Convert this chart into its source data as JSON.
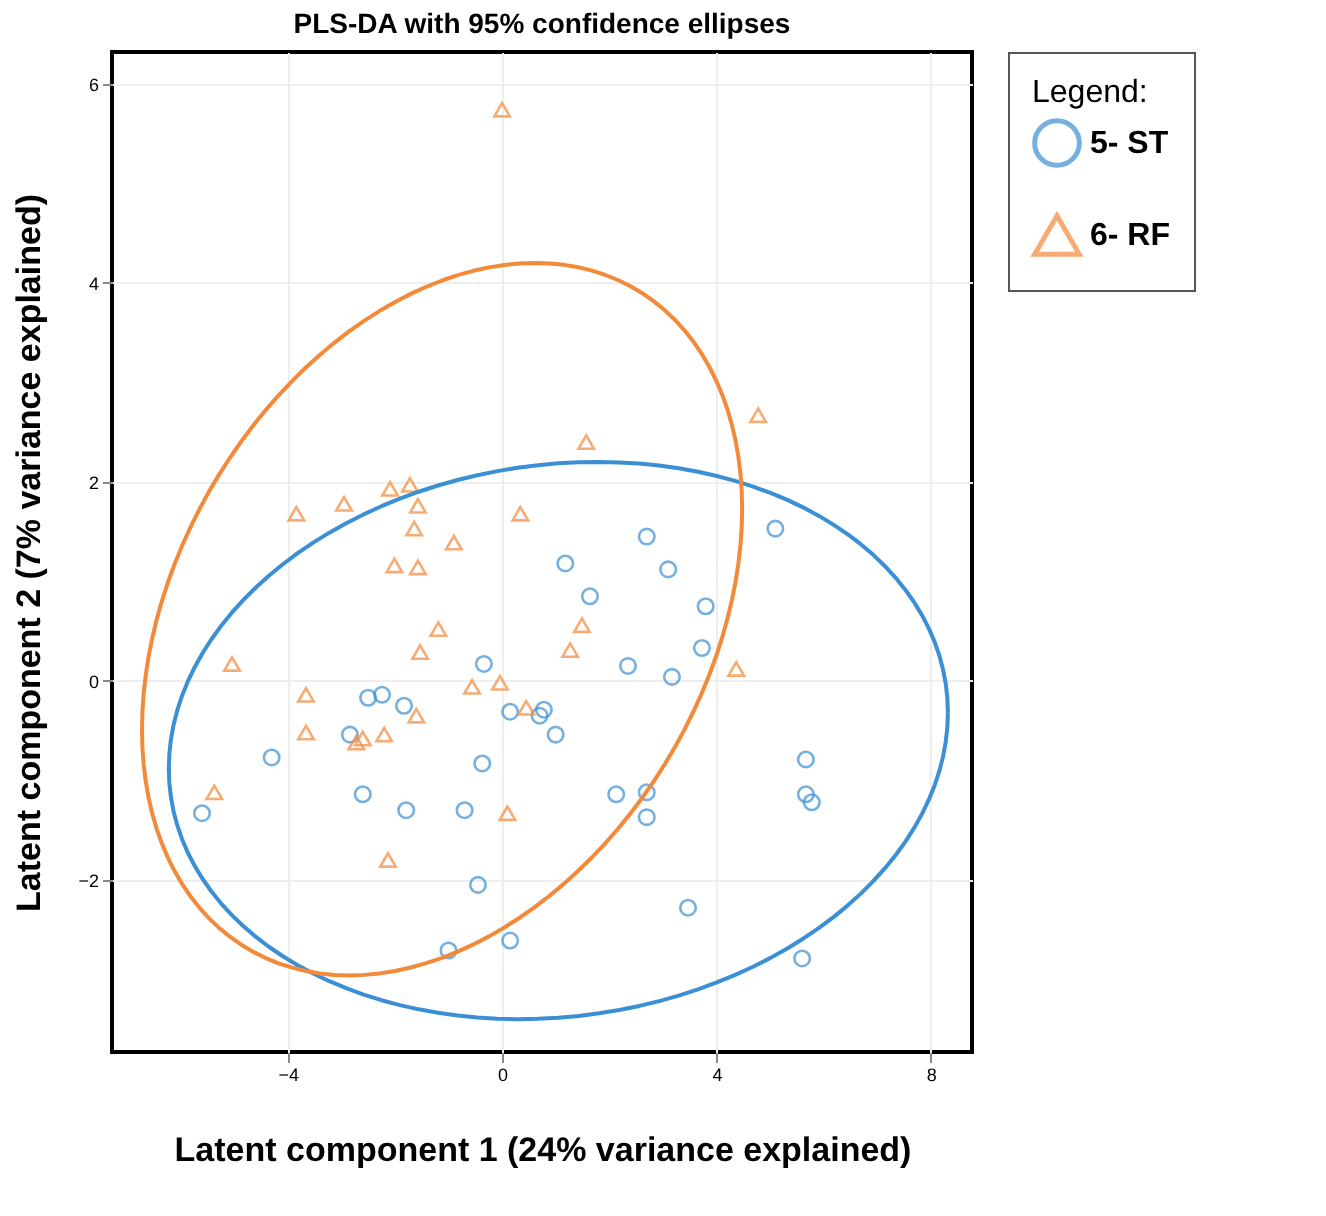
{
  "chart_data": {
    "type": "scatter",
    "title": "PLS-DA with 95% confidence ellipses",
    "xlabel": "Latent component 1 (24% variance explained)",
    "ylabel": "Latent component 2 (7% variance explained)",
    "legend_title": "Legend:",
    "legend": "right",
    "grid": true,
    "xlim": [
      -7.28,
      8.77
    ],
    "ylim": [
      -3.73,
      6.32
    ],
    "xticks": [
      -4,
      0,
      4,
      8
    ],
    "yticks": [
      -2,
      0,
      2,
      4,
      6
    ],
    "series": [
      {
        "name": "5- ST",
        "marker": "circle",
        "color": "#3b8fd4",
        "x": [
          2.7,
          3.1,
          3.8,
          5.1,
          1.64,
          1.18,
          3.73,
          3.17,
          2.35,
          -0.34,
          0.15,
          0.7,
          0.78,
          1.0,
          2.13,
          2.7,
          2.7,
          5.67,
          5.67,
          5.78,
          3.47,
          5.6,
          0.15,
          -1.0,
          -0.45,
          -0.7,
          -1.79,
          -2.6,
          -0.37,
          -4.3,
          -5.6,
          -2.84,
          -2.5,
          -2.24,
          -1.83
        ],
        "values": [
          1.45,
          1.12,
          0.75,
          1.53,
          0.85,
          1.18,
          0.33,
          0.04,
          0.15,
          0.17,
          -0.31,
          -0.35,
          -0.29,
          -0.54,
          -1.14,
          -1.12,
          -1.37,
          -0.79,
          -1.14,
          -1.22,
          -2.28,
          -2.79,
          -2.61,
          -2.71,
          -2.05,
          -1.3,
          -1.3,
          -1.14,
          -0.83,
          -0.77,
          -1.33,
          -0.54,
          -0.17,
          -0.14,
          -0.25
        ]
      },
      {
        "name": "6- RF",
        "marker": "triangle",
        "color": "#f28a3a",
        "x": [
          0,
          4.78,
          1.57,
          -3.84,
          -2.95,
          -2.09,
          -1.72,
          -1.57,
          -1.64,
          -2.01,
          -1.57,
          0.34,
          -0.9,
          1.49,
          1.27,
          -1.19,
          -1.53,
          -5.04,
          -3.66,
          -3.66,
          -1.6,
          -2.2,
          -2.72,
          -2.6,
          -0.56,
          -0.04,
          0.45,
          4.37,
          -5.37,
          0.1,
          -2.13
        ],
        "values": [
          5.74,
          2.67,
          2.4,
          1.68,
          1.78,
          1.93,
          1.97,
          1.76,
          1.53,
          1.16,
          1.14,
          1.68,
          1.39,
          0.56,
          0.31,
          0.52,
          0.29,
          0.17,
          -0.14,
          -0.52,
          -0.35,
          -0.54,
          -0.62,
          -0.58,
          -0.06,
          -0.02,
          -0.27,
          0.12,
          -1.12,
          -1.33,
          -1.8
        ]
      }
    ]
  }
}
